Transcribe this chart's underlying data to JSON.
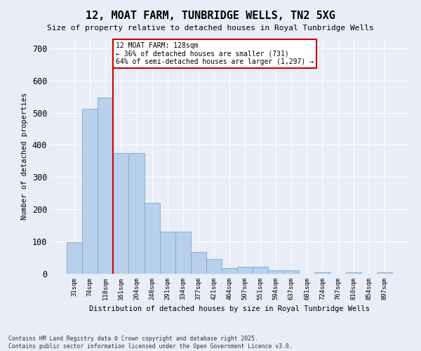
{
  "title": "12, MOAT FARM, TUNBRIDGE WELLS, TN2 5XG",
  "subtitle": "Size of property relative to detached houses in Royal Tunbridge Wells",
  "xlabel": "Distribution of detached houses by size in Royal Tunbridge Wells",
  "ylabel": "Number of detached properties",
  "footnote": "Contains HM Land Registry data © Crown copyright and database right 2025.\nContains public sector information licensed under the Open Government Licence v3.0.",
  "bar_labels": [
    "31sqm",
    "74sqm",
    "118sqm",
    "161sqm",
    "204sqm",
    "248sqm",
    "291sqm",
    "334sqm",
    "377sqm",
    "421sqm",
    "464sqm",
    "507sqm",
    "551sqm",
    "594sqm",
    "637sqm",
    "681sqm",
    "724sqm",
    "767sqm",
    "810sqm",
    "854sqm",
    "897sqm"
  ],
  "bar_values": [
    97,
    513,
    548,
    375,
    375,
    220,
    130,
    130,
    67,
    46,
    18,
    21,
    21,
    11,
    11,
    0,
    5,
    0,
    5,
    0,
    5
  ],
  "bar_color": "#b8d0ea",
  "bar_edge_color": "#7aaad0",
  "property_line_x": 2.5,
  "annotation_text": "12 MOAT FARM: 128sqm\n← 36% of detached houses are smaller (731)\n64% of semi-detached houses are larger (1,297) →",
  "annotation_box_color": "#cc0000",
  "annotation_box_face": "#ffffff",
  "line_color": "#cc0000",
  "ylim": [
    0,
    730
  ],
  "yticks": [
    0,
    100,
    200,
    300,
    400,
    500,
    600,
    700
  ],
  "background_color": "#e8edf7",
  "plot_background": "#e8edf7"
}
